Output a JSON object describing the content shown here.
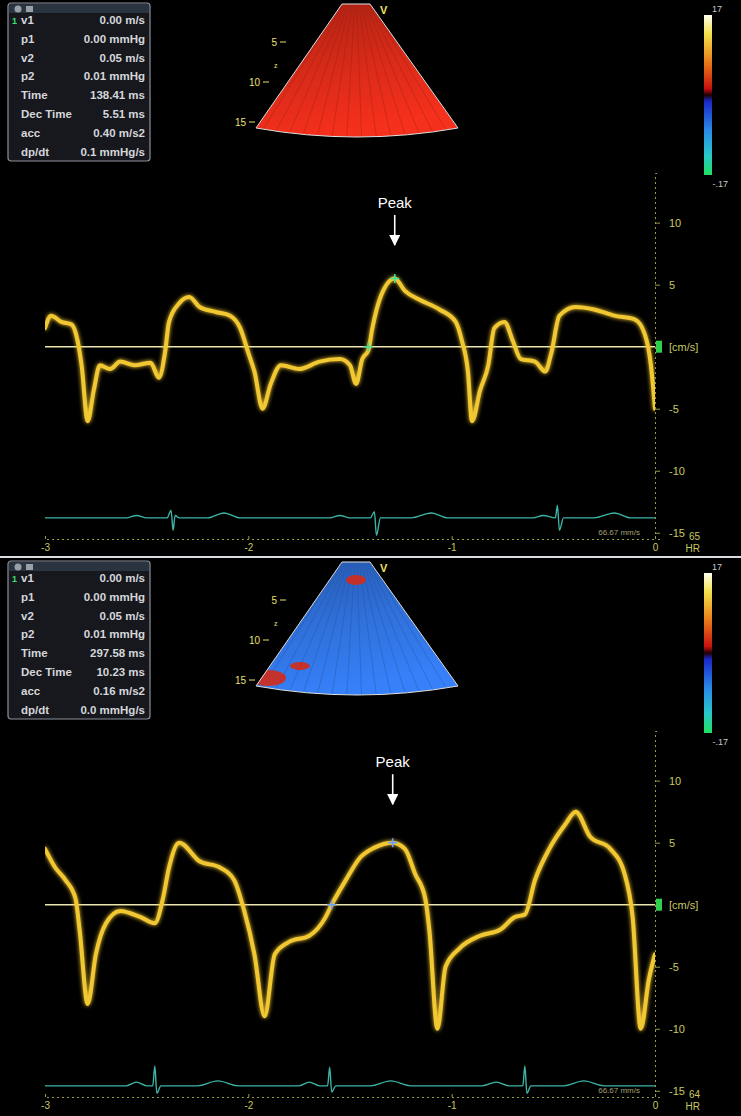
{
  "chart_data": [
    {
      "type": "line",
      "xlim": [
        -3.0,
        0.0
      ],
      "xticks": [
        -3,
        -2,
        -1,
        0
      ],
      "ylim": [
        -15.5,
        14
      ],
      "yticks": [
        10,
        5,
        {
          "value": 0,
          "label": "[cm/s]"
        },
        -5,
        -10,
        -15
      ],
      "series": [
        {
          "type": "line",
          "color": "#f2c832",
          "x": [
            -3.0,
            -2.97,
            -2.92,
            -2.87,
            -2.84,
            -2.82,
            -2.79,
            -2.76,
            -2.73,
            -2.68,
            -2.63,
            -2.56,
            -2.48,
            -2.44,
            -2.41,
            -2.39,
            -2.34,
            -2.29,
            -2.24,
            -2.16,
            -2.09,
            -2.04,
            -2.0,
            -1.97,
            -1.93,
            -1.89,
            -1.84,
            -1.75,
            -1.65,
            -1.55,
            -1.5,
            -1.47,
            -1.44,
            -1.41,
            -1.39,
            -1.35,
            -1.28,
            -1.23,
            -1.16,
            -1.06,
            -0.98,
            -0.95,
            -0.92,
            -0.9,
            -0.86,
            -0.82,
            -0.79,
            -0.74,
            -0.7,
            -0.66,
            -0.59,
            -0.54,
            -0.51,
            -0.47,
            -0.39,
            -0.3,
            -0.2,
            -0.1,
            -0.05,
            -0.02,
            0.0
          ],
          "values": [
            1.5,
            2.5,
            2.0,
            1.8,
            0.5,
            -1.5,
            -6.0,
            -3.5,
            -1.5,
            -1.8,
            -1.2,
            -1.5,
            -1.3,
            -2.5,
            -0.5,
            2.0,
            3.5,
            4.0,
            3.2,
            2.8,
            2.5,
            1.5,
            -0.5,
            -2.0,
            -5.0,
            -3.0,
            -1.5,
            -1.8,
            -1.2,
            -1.0,
            -1.5,
            -3.0,
            -1.0,
            -0.3,
            1.5,
            4.0,
            5.5,
            4.5,
            3.8,
            3.0,
            2.0,
            0.5,
            -2.0,
            -6.0,
            -3.5,
            -1.5,
            1.5,
            2.0,
            0.5,
            -1.0,
            -1.2,
            -2.0,
            -0.5,
            2.5,
            3.2,
            3.0,
            2.5,
            2.2,
            1.0,
            -1.5,
            -5.0
          ]
        },
        {
          "type": "line",
          "color": "#3cb4a8",
          "x": [
            -3.0,
            -2.6,
            -2.55,
            -2.5,
            -2.4,
            -2.38,
            -2.37,
            -2.36,
            -2.34,
            -2.2,
            -2.12,
            -2.04,
            -1.7,
            -1.6,
            -1.55,
            -1.5,
            -1.4,
            -1.38,
            -1.37,
            -1.35,
            -1.2,
            -1.1,
            -1.02,
            -0.7,
            -0.6,
            -0.55,
            -0.49,
            -0.48,
            -0.47,
            -0.45,
            -0.3,
            -0.2,
            -0.12,
            0.0
          ],
          "values": [
            -13.8,
            -13.8,
            -13.6,
            -13.8,
            -13.8,
            -13.2,
            -14.8,
            -13.6,
            -13.8,
            -13.8,
            -13.4,
            -13.8,
            -13.8,
            -13.8,
            -13.6,
            -13.8,
            -13.8,
            -13.3,
            -15.2,
            -13.8,
            -13.8,
            -13.4,
            -13.8,
            -13.8,
            -13.8,
            -13.6,
            -13.8,
            -12.8,
            -14.8,
            -13.8,
            -13.8,
            -13.4,
            -13.8,
            -13.8
          ]
        },
        {
          "type": "scatter",
          "marker": "cross",
          "color": "#3de0a0",
          "x": [
            -1.41,
            -1.28
          ],
          "values": [
            0,
            5.5
          ]
        }
      ],
      "annotations": [
        {
          "text": "Peak",
          "x": -1.28,
          "y": 8.2
        }
      ],
      "measurement_set": "1",
      "measurements": [
        {
          "label": "v1",
          "value": "0.00 m/s"
        },
        {
          "label": "p1",
          "value": "0.00 mmHg"
        },
        {
          "label": "v2",
          "value": "0.05 m/s"
        },
        {
          "label": "p2",
          "value": "0.01 mmHg"
        },
        {
          "label": "Time",
          "value": "138.41 ms"
        },
        {
          "label": "Dec Time",
          "value": "5.51 ms"
        },
        {
          "label": "acc",
          "value": "0.40 m/s2"
        },
        {
          "label": "dp/dt",
          "value": "0.1 mmHg/s"
        }
      ],
      "sector": {
        "colors": [
          "#d42a18"
        ],
        "depth_labels": [
          "5",
          "10",
          "15"
        ],
        "marker": "V",
        "focus_label": "z"
      },
      "colorbar_labels": [
        "17",
        "-.17"
      ],
      "heart_rate": 65,
      "heart_rate_label": "HR",
      "sweep_speed": "66.67 mm/s"
    },
    {
      "type": "line",
      "xlim": [
        -3.0,
        0.0
      ],
      "xticks": [
        -3,
        -2,
        -1,
        0
      ],
      "ylim": [
        -15.5,
        14
      ],
      "yticks": [
        10,
        5,
        {
          "value": 0,
          "label": "[cm/s]"
        },
        -5,
        -10,
        -15
      ],
      "series": [
        {
          "type": "line",
          "color": "#f2c832",
          "x": [
            -3.0,
            -2.95,
            -2.9,
            -2.85,
            -2.83,
            -2.79,
            -2.75,
            -2.7,
            -2.63,
            -2.53,
            -2.46,
            -2.42,
            -2.39,
            -2.34,
            -2.24,
            -2.14,
            -2.07,
            -2.02,
            -1.97,
            -1.92,
            -1.87,
            -1.8,
            -1.7,
            -1.62,
            -1.59,
            -1.52,
            -1.45,
            -1.38,
            -1.29,
            -1.23,
            -1.18,
            -1.13,
            -1.11,
            -1.07,
            -1.03,
            -0.96,
            -0.86,
            -0.76,
            -0.69,
            -0.64,
            -0.59,
            -0.52,
            -0.44,
            -0.39,
            -0.32,
            -0.22,
            -0.15,
            -0.11,
            -0.07,
            -0.03,
            0.0
          ],
          "values": [
            4.5,
            3.0,
            2.0,
            0.5,
            -2.0,
            -8.0,
            -4.0,
            -1.5,
            -0.5,
            -1.0,
            -1.5,
            0.5,
            3.0,
            5.0,
            3.5,
            3.0,
            2.0,
            -0.5,
            -4.0,
            -9.0,
            -4.0,
            -3.0,
            -2.5,
            -1.0,
            0.0,
            2.0,
            3.8,
            4.6,
            5.0,
            4.5,
            2.5,
            0.5,
            -2.0,
            -10.0,
            -5.0,
            -3.5,
            -2.5,
            -2.0,
            -1.0,
            -0.8,
            2.0,
            4.5,
            6.5,
            7.5,
            5.5,
            4.5,
            2.5,
            -1.0,
            -10.0,
            -6.0,
            -4.0
          ]
        },
        {
          "type": "line",
          "color": "#3cb4a8",
          "x": [
            -3.0,
            -2.8,
            -2.6,
            -2.55,
            -2.5,
            -2.47,
            -2.46,
            -2.45,
            -2.43,
            -2.25,
            -2.15,
            -2.05,
            -1.75,
            -1.7,
            -1.65,
            -1.61,
            -1.6,
            -1.59,
            -1.57,
            -1.4,
            -1.3,
            -1.2,
            -0.85,
            -0.78,
            -0.72,
            -0.65,
            -0.64,
            -0.63,
            -0.61,
            -0.45,
            -0.35,
            -0.25,
            0.0
          ],
          "values": [
            -14.6,
            -14.6,
            -14.6,
            -14.3,
            -14.6,
            -14.6,
            -13.0,
            -15.2,
            -14.6,
            -14.6,
            -14.2,
            -14.6,
            -14.6,
            -14.3,
            -14.6,
            -14.6,
            -13.1,
            -15.1,
            -14.6,
            -14.6,
            -14.2,
            -14.6,
            -14.6,
            -14.3,
            -14.6,
            -14.6,
            -13.0,
            -15.2,
            -14.6,
            -14.6,
            -14.2,
            -14.6,
            -14.6
          ]
        },
        {
          "type": "scatter",
          "marker": "cross",
          "color": "#6aa0ff",
          "x": [
            -1.59,
            -1.29
          ],
          "values": [
            0,
            5.0
          ]
        }
      ],
      "annotations": [
        {
          "text": "Peak",
          "x": -1.29,
          "y": 8.1
        }
      ],
      "measurement_set": "1",
      "measurements": [
        {
          "label": "v1",
          "value": "0.00 m/s"
        },
        {
          "label": "p1",
          "value": "0.00 mmHg"
        },
        {
          "label": "v2",
          "value": "0.05 m/s"
        },
        {
          "label": "p2",
          "value": "0.01 mmHg"
        },
        {
          "label": "Time",
          "value": "297.58 ms"
        },
        {
          "label": "Dec Time",
          "value": "10.23 ms"
        },
        {
          "label": "acc",
          "value": "0.16 m/s2"
        },
        {
          "label": "dp/dt",
          "value": "0.0 mmHg/s"
        }
      ],
      "sector": {
        "colors": [
          "#2f6fd8",
          "#d42a18"
        ],
        "depth_labels": [
          "5",
          "10",
          "15"
        ],
        "marker": "V",
        "focus_label": "z"
      },
      "colorbar_labels": [
        "17",
        "-.17"
      ],
      "heart_rate": 64,
      "heart_rate_label": "HR",
      "sweep_speed": "66.67 mm/s"
    }
  ]
}
